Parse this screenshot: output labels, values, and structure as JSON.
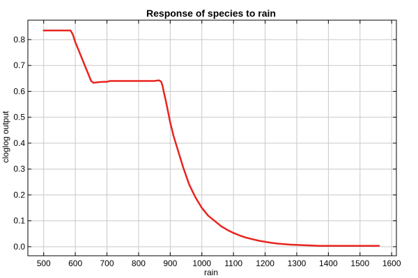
{
  "chart_data": {
    "type": "line",
    "title": "Response of species to rain",
    "xlabel": "rain",
    "ylabel": "cloglog output",
    "xlim": [
      450,
      1615
    ],
    "ylim": [
      -0.035,
      0.875
    ],
    "x_ticks": [
      500,
      600,
      700,
      800,
      900,
      1000,
      1100,
      1200,
      1300,
      1400,
      1500,
      1600
    ],
    "y_ticks": [
      "0.0",
      "0.1",
      "0.2",
      "0.3",
      "0.4",
      "0.5",
      "0.6",
      "0.7",
      "0.8"
    ],
    "grid": true,
    "legend": "none",
    "series": [
      {
        "color": "#e8231f",
        "x": [
          500,
          585,
          592,
          600,
          610,
          620,
          630,
          640,
          650,
          658,
          670,
          680,
          690,
          700,
          710,
          720,
          740,
          760,
          780,
          800,
          820,
          840,
          850,
          860,
          866,
          872,
          876,
          880,
          885,
          890,
          900,
          910,
          920,
          930,
          940,
          950,
          960,
          970,
          980,
          990,
          1000,
          1020,
          1040,
          1060,
          1080,
          1100,
          1120,
          1140,
          1160,
          1180,
          1200,
          1220,
          1240,
          1260,
          1280,
          1300,
          1320,
          1340,
          1360,
          1370,
          1400,
          1450,
          1500,
          1560
        ],
        "y": [
          0.835,
          0.835,
          0.82,
          0.79,
          0.76,
          0.73,
          0.7,
          0.67,
          0.64,
          0.633,
          0.635,
          0.636,
          0.637,
          0.637,
          0.64,
          0.64,
          0.64,
          0.64,
          0.64,
          0.64,
          0.64,
          0.64,
          0.64,
          0.642,
          0.642,
          0.636,
          0.62,
          0.595,
          0.57,
          0.54,
          0.48,
          0.43,
          0.39,
          0.35,
          0.31,
          0.275,
          0.24,
          0.215,
          0.19,
          0.17,
          0.15,
          0.12,
          0.1,
          0.08,
          0.065,
          0.053,
          0.043,
          0.035,
          0.029,
          0.023,
          0.019,
          0.015,
          0.012,
          0.01,
          0.008,
          0.007,
          0.006,
          0.005,
          0.004,
          0.0035,
          0.003,
          0.003,
          0.003,
          0.003
        ]
      }
    ]
  }
}
